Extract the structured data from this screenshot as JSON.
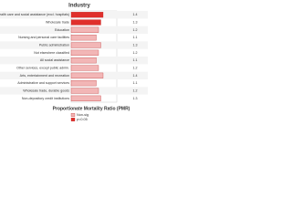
{
  "chart_data": {
    "type": "bar",
    "orientation": "horizontal",
    "title": "Industry",
    "x_label": "Proportionate Mortality Ratio (PMR)",
    "categories": [
      "Health care and social assistance (excl. hospitals)",
      "Wholesale trade",
      "Education",
      "Nursing and personal care facilities",
      "Public administration",
      "Not elsewhere classified",
      "All social assistance",
      "Other services, except public admin.",
      "Arts, entertainment and recreation",
      "Administrative and support services",
      "Wholesale trade, durable goods",
      "Non-depository credit institutions"
    ],
    "series": [
      {
        "name": "Non-sig",
        "color": "#f2b6b6",
        "values": [
          null,
          null,
          1.2,
          1.1,
          1.3,
          1.2,
          1.1,
          1.2,
          1.4,
          1.1,
          1.2,
          1.3
        ]
      },
      {
        "name": "p<0.05",
        "color": "#e0302c",
        "values": [
          1.4,
          1.3,
          null,
          null,
          null,
          null,
          null,
          null,
          null,
          null,
          null,
          null
        ]
      }
    ],
    "xlim": [
      0,
      2
    ]
  }
}
